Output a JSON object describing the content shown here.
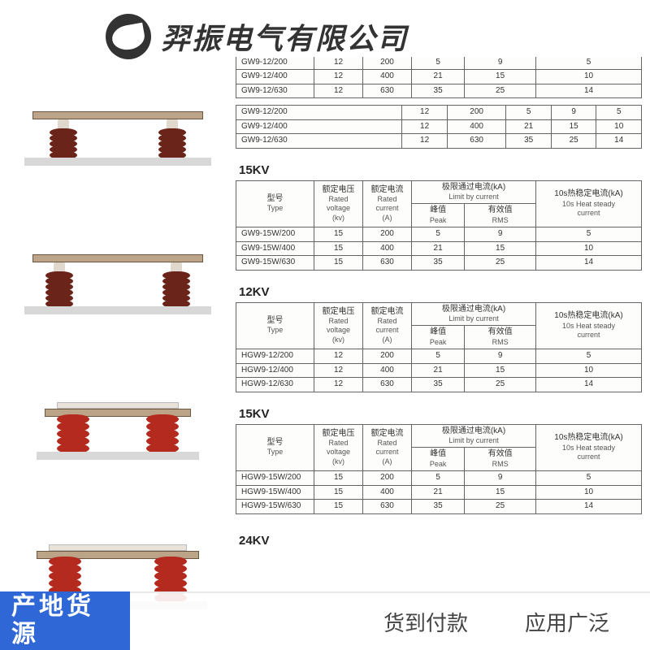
{
  "header": {
    "company_name": "羿振电气有限公司"
  },
  "headers": {
    "type_cn": "型号",
    "type_en": "Type",
    "voltage_cn": "额定电压",
    "voltage_en1": "Rated",
    "voltage_en2": "voltage",
    "voltage_unit": "(kv)",
    "current_cn": "额定电流",
    "current_en1": "Rated",
    "current_en2": "current",
    "current_unit": "(A)",
    "limit_cn": "极限通过电流(kA)",
    "limit_en": "Limit by current",
    "peak_cn": "峰值",
    "peak_en": "Peak",
    "rms_cn": "有效值",
    "rms_en": "RMS",
    "heat_cn": "10s热稳定电流(kA)",
    "heat_en1": "10s Heat steady",
    "heat_en2": "current",
    "heat_unit_partial": "流(kA)",
    "heat_en_partial1": "steady",
    "heat_en_partial2": "urrent"
  },
  "blocks": [
    {
      "title": "",
      "partial": true,
      "rows": [
        {
          "m": "GW9-12/200",
          "v": "12",
          "c": "200",
          "p": "5",
          "r": "9",
          "h": "5"
        },
        {
          "m": "GW9-12/400",
          "v": "12",
          "c": "400",
          "p": "21",
          "r": "15",
          "h": "10"
        },
        {
          "m": "GW9-12/630",
          "v": "12",
          "c": "630",
          "p": "35",
          "r": "25",
          "h": "14"
        }
      ]
    },
    {
      "title": "15KV",
      "rows": [
        {
          "m": "GW9-15W/200",
          "v": "15",
          "c": "200",
          "p": "5",
          "r": "9",
          "h": "5"
        },
        {
          "m": "GW9-15W/400",
          "v": "15",
          "c": "400",
          "p": "21",
          "r": "15",
          "h": "10"
        },
        {
          "m": "GW9-15W/630",
          "v": "15",
          "c": "630",
          "p": "35",
          "r": "25",
          "h": "14"
        }
      ]
    },
    {
      "title": "12KV",
      "rows": [
        {
          "m": "HGW9-12/200",
          "v": "12",
          "c": "200",
          "p": "5",
          "r": "9",
          "h": "5"
        },
        {
          "m": "HGW9-12/400",
          "v": "12",
          "c": "400",
          "p": "21",
          "r": "15",
          "h": "10"
        },
        {
          "m": "HGW9-12/630",
          "v": "12",
          "c": "630",
          "p": "35",
          "r": "25",
          "h": "14"
        }
      ]
    },
    {
      "title": "15KV",
      "rows": [
        {
          "m": "HGW9-15W/200",
          "v": "15",
          "c": "200",
          "p": "5",
          "r": "9",
          "h": "5"
        },
        {
          "m": "HGW9-15W/400",
          "v": "15",
          "c": "400",
          "p": "21",
          "r": "15",
          "h": "10"
        },
        {
          "m": "HGW9-15W/630",
          "v": "15",
          "c": "630",
          "p": "35",
          "r": "25",
          "h": "14"
        }
      ]
    }
  ],
  "trailing_title": "24KV",
  "footer": {
    "badge": "产地货源",
    "tag1": "货到付款",
    "tag2": "应用广泛"
  },
  "styling": {
    "page_bg": "#ffffff",
    "header_text_color": "#333333",
    "header_font_size_pt": 27,
    "table_border_color": "#666666",
    "table_font_size_pt": 7.5,
    "badge_bg": "#2f68d6",
    "badge_text_color": "#ffffff",
    "badge_font_size_pt": 22,
    "footer_text_color": "#444444",
    "footer_font_size_pt": 20,
    "insulator_brown": "#6b2419",
    "insulator_red": "#b42a1f",
    "bar_color": "#bca489",
    "base_plate_color": "#d8d8d8"
  }
}
